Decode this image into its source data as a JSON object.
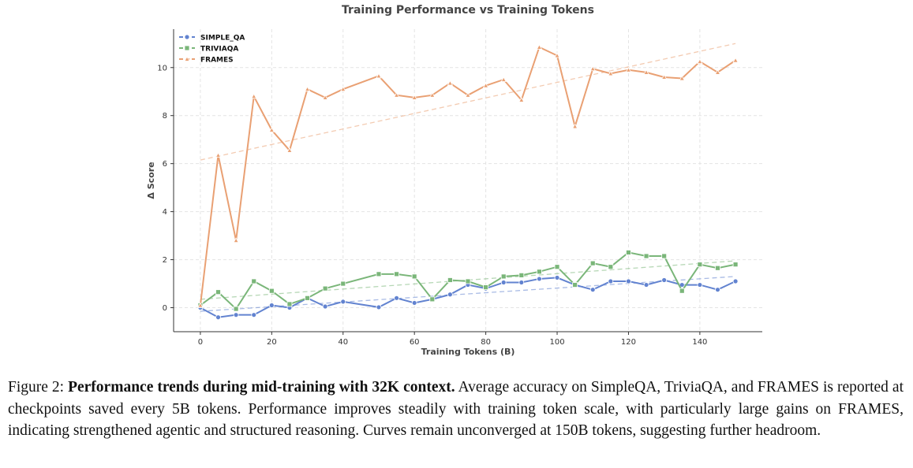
{
  "chart_data": {
    "type": "line",
    "title": "Training Performance vs Training Tokens",
    "xlabel": "Training Tokens (B)",
    "ylabel": "Δ Score",
    "xlim": [
      -7.5,
      157.5
    ],
    "ylim": [
      -1.0,
      11.6
    ],
    "xticks": [
      0,
      20,
      40,
      60,
      80,
      100,
      120,
      140
    ],
    "yticks": [
      0,
      2,
      4,
      6,
      8,
      10
    ],
    "grid": true,
    "legend": "top-left",
    "x": [
      0,
      5,
      10,
      15,
      20,
      25,
      30,
      35,
      40,
      50,
      55,
      60,
      65,
      70,
      75,
      80,
      85,
      90,
      95,
      100,
      105,
      110,
      115,
      120,
      125,
      130,
      135,
      140,
      145,
      150
    ],
    "series": [
      {
        "name": "SIMPLE_QA",
        "color": "#6283d0",
        "marker": "circle",
        "values": [
          0.0,
          -0.4,
          -0.3,
          -0.3,
          0.1,
          0.0,
          0.4,
          0.05,
          0.25,
          0.02,
          0.4,
          0.2,
          0.35,
          0.55,
          0.95,
          0.8,
          1.05,
          1.05,
          1.2,
          1.25,
          0.95,
          0.75,
          1.1,
          1.1,
          0.95,
          1.15,
          0.95,
          0.95,
          0.75,
          1.1
        ],
        "trend": [
          -0.15,
          1.3
        ]
      },
      {
        "name": "TRIVIAQA",
        "color": "#7ab679",
        "marker": "square",
        "values": [
          0.1,
          0.65,
          -0.05,
          1.1,
          0.7,
          0.15,
          0.4,
          0.8,
          1.0,
          1.4,
          1.4,
          1.3,
          0.35,
          1.15,
          1.1,
          0.85,
          1.3,
          1.35,
          1.5,
          1.7,
          0.95,
          1.85,
          1.7,
          2.3,
          2.15,
          2.15,
          0.7,
          1.8,
          1.65,
          1.8
        ],
        "trend": [
          0.35,
          1.95
        ]
      },
      {
        "name": "FRAMES",
        "color": "#e9a073",
        "marker": "triangle",
        "values": [
          0.1,
          6.35,
          2.8,
          8.8,
          7.4,
          6.55,
          9.1,
          8.75,
          9.1,
          9.65,
          8.85,
          8.75,
          8.85,
          9.35,
          8.85,
          9.25,
          9.5,
          8.65,
          10.85,
          10.5,
          7.55,
          9.95,
          9.75,
          9.9,
          9.8,
          9.6,
          9.55,
          10.25,
          9.8,
          10.3
        ],
        "trend": [
          6.15,
          11.0
        ]
      }
    ]
  },
  "caption": {
    "label": "Figure 2:",
    "bold": "Performance trends during mid-training with 32K context.",
    "text": "Average accuracy on SimpleQA, TriviaQA, and FRAMES is reported at checkpoints saved every  5B tokens. Performance improves steadily with training token scale, with particularly large gains on FRAMES, indicating strengthened agentic and structured reasoning. Curves remain unconverged at 150B tokens, suggesting further headroom."
  }
}
